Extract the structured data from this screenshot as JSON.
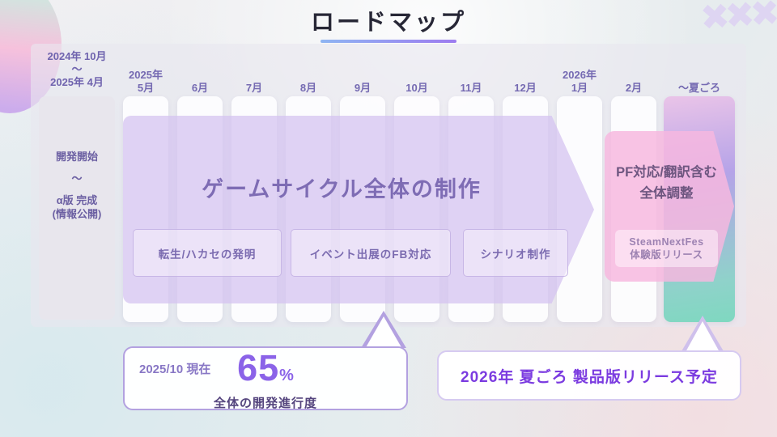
{
  "title": "ロードマップ",
  "decoration": {
    "crosses": "✖✖✖"
  },
  "timeline": {
    "phase0": {
      "header_lines": [
        "2024年 10月",
        "～",
        "2025年 4月"
      ],
      "body_lines": [
        "開発開始",
        "～",
        "α版 完成",
        "(情報公開)"
      ]
    },
    "columns": [
      {
        "year": "2025年",
        "month": "5月"
      },
      {
        "month": "6月"
      },
      {
        "month": "7月"
      },
      {
        "month": "8月"
      },
      {
        "month": "9月"
      },
      {
        "month": "10月"
      },
      {
        "month": "11月"
      },
      {
        "month": "12月"
      },
      {
        "year": "2026年",
        "month": "1月"
      },
      {
        "month": "2月"
      },
      {
        "month": "～夏ごろ",
        "gradient": true
      }
    ]
  },
  "main_arrow": {
    "label": "ゲームサイクル全体の制作",
    "tasks": [
      "転生/ハカセの発明",
      "イベント出展のFB対応",
      "シナリオ制作"
    ]
  },
  "final_arrow": {
    "line1": "PF対応/翻訳含む",
    "line2": "全体調整",
    "badge_line1": "SteamNextFes",
    "badge_line2": "体験版リリース"
  },
  "progress_callout": {
    "as_of": "2025/10 現在",
    "value": "65",
    "unit": "%",
    "caption": "全体の開発進行度"
  },
  "release_callout": {
    "text": "2026年 夏ごろ 製品版リリース予定"
  },
  "colors": {
    "accent_purple": "#7b3be0",
    "progress_value": "#8b63e8",
    "main_arrow_fill": "#d5c4f1",
    "final_arrow_fill": "#f7b8df",
    "summer_gradient_top": "#eac4e8",
    "summer_gradient_mid": "#b5a3e8",
    "summer_gradient_bottom": "#7fd8c0",
    "underline_from": "#8fb5f2",
    "underline_to": "#9d7cf0"
  }
}
